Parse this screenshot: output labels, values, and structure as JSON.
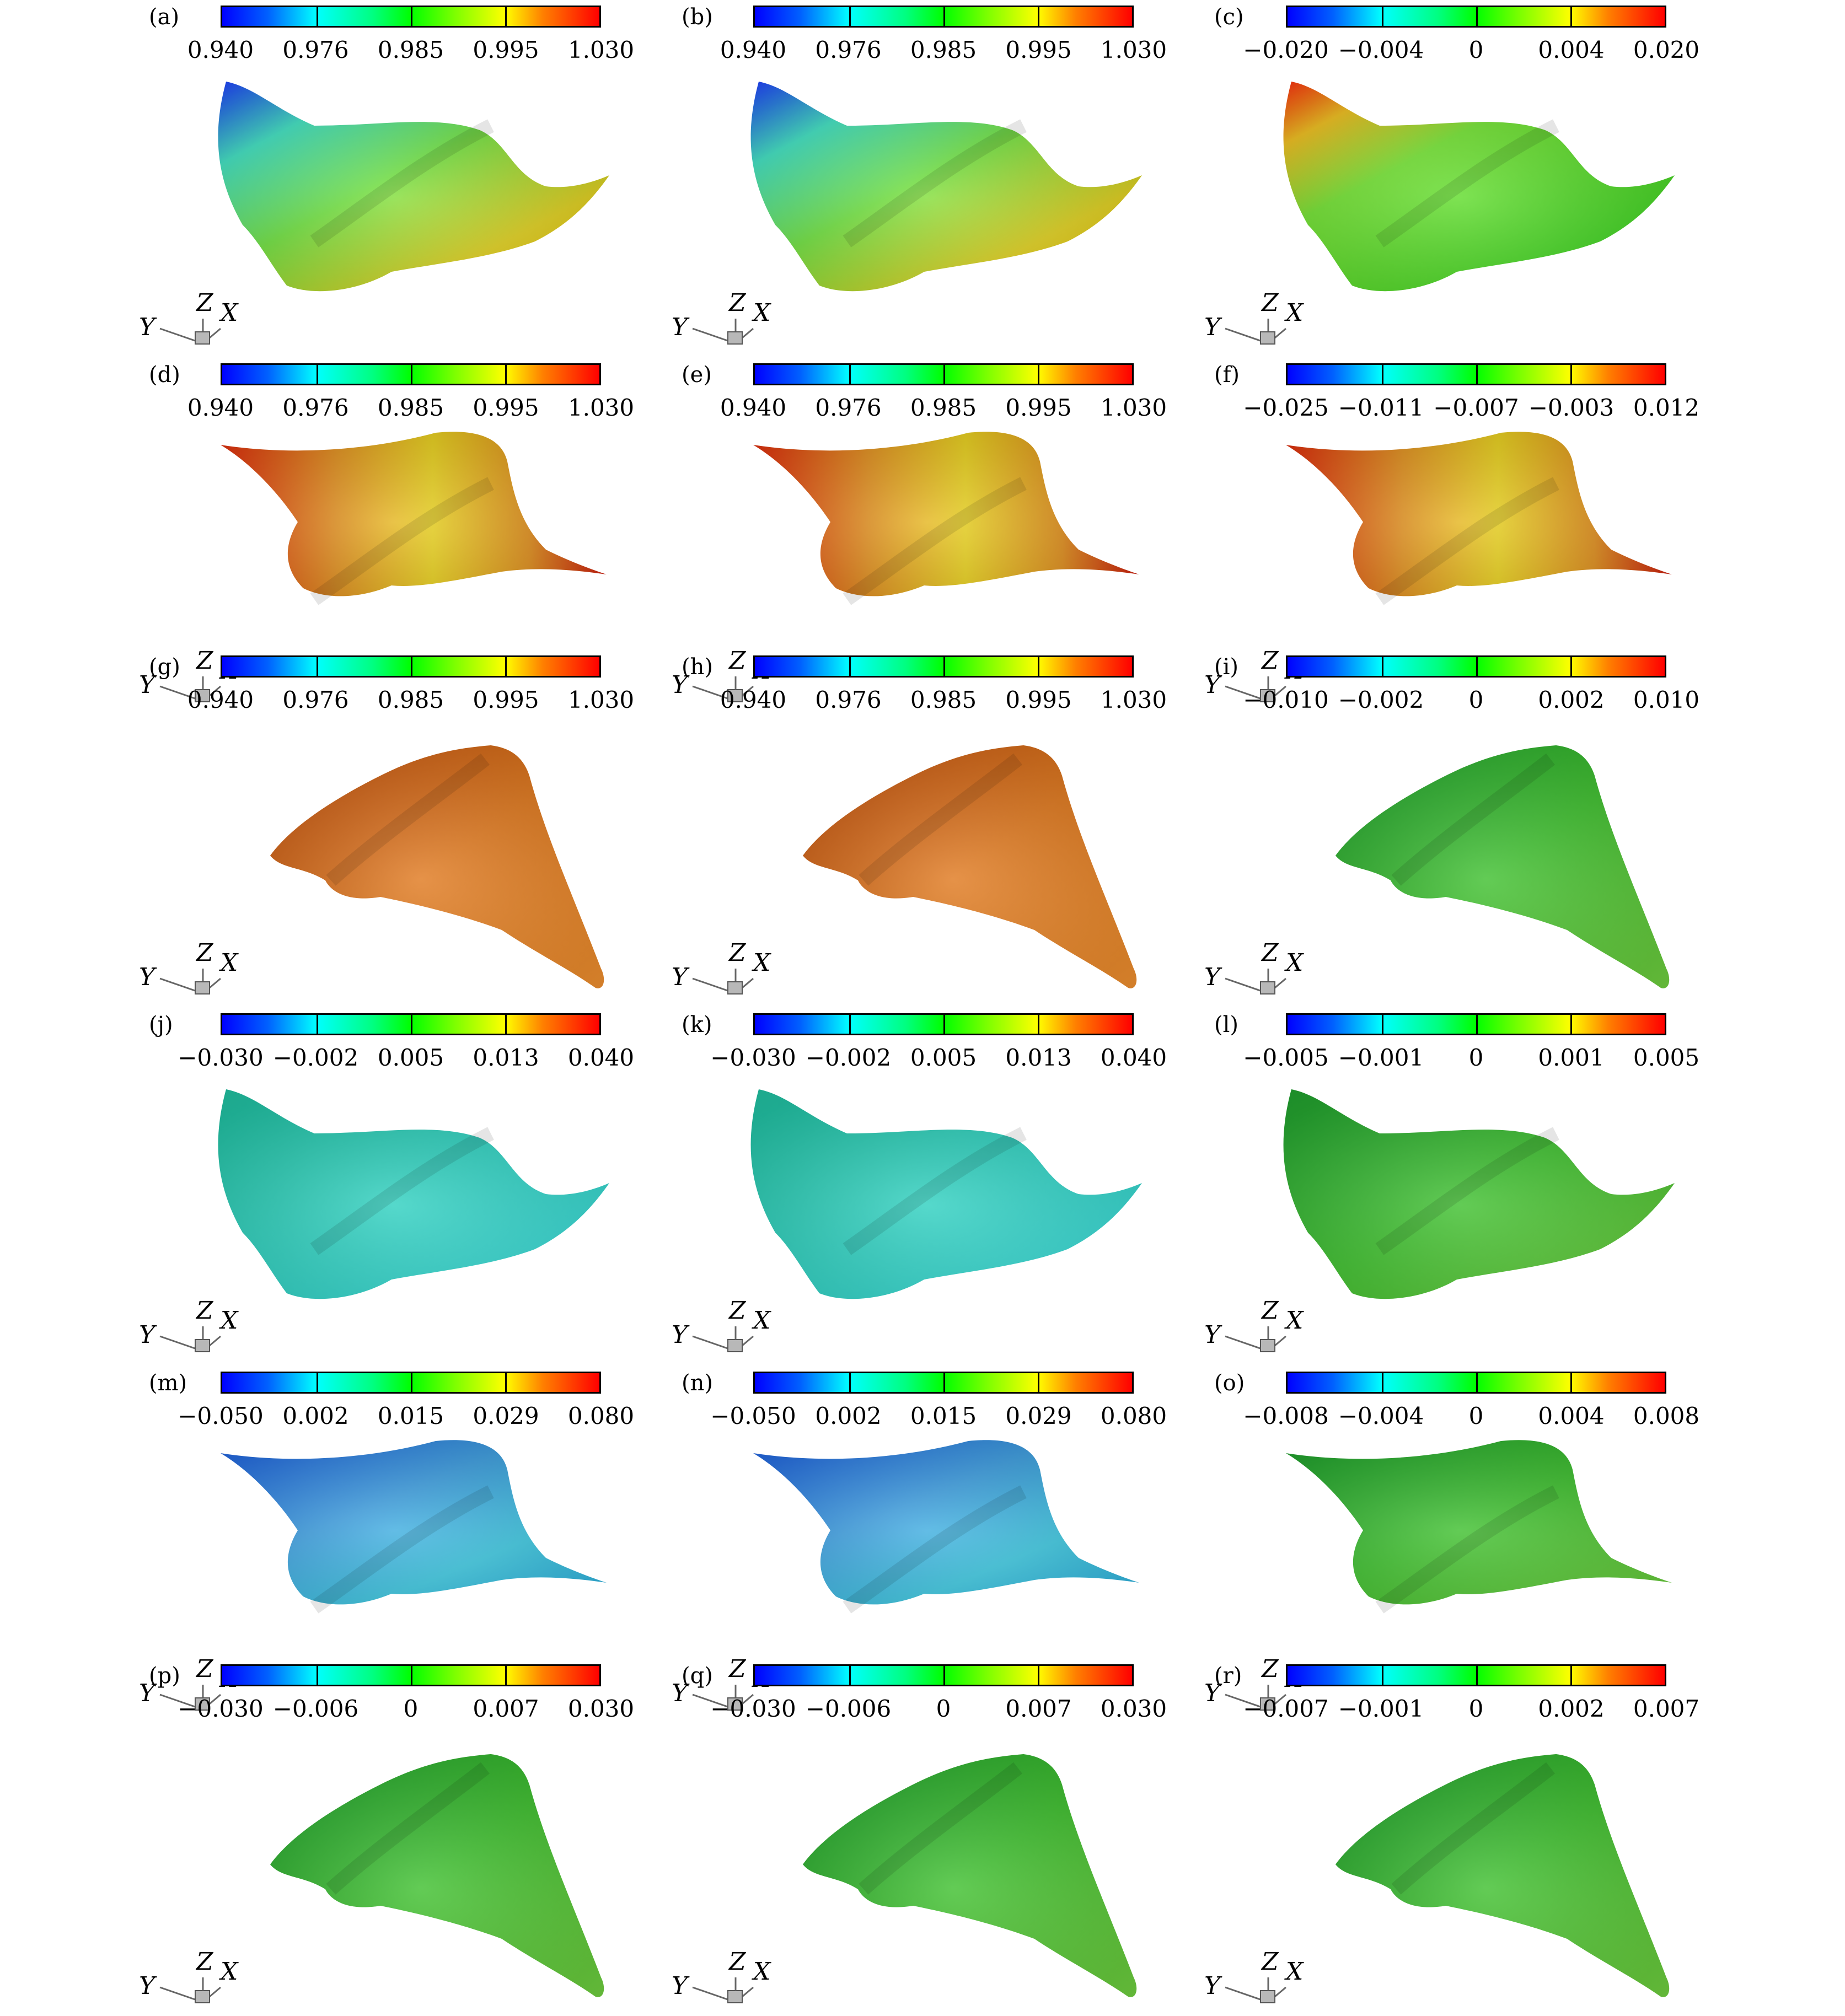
{
  "panels": [
    {
      "label": "(a)",
      "ticks": [
        "0.940",
        "0.976",
        "0.985",
        "0.995",
        "1.030"
      ],
      "shape": "A",
      "scheme": "ca"
    },
    {
      "label": "(b)",
      "ticks": [
        "0.940",
        "0.976",
        "0.985",
        "0.995",
        "1.030"
      ],
      "shape": "A",
      "scheme": "ca"
    },
    {
      "label": "(c)",
      "ticks": [
        "−0.020",
        "−0.004",
        "0",
        "0.004",
        "0.020"
      ],
      "shape": "A",
      "scheme": "diffA"
    },
    {
      "label": "(d)",
      "ticks": [
        "0.940",
        "0.976",
        "0.985",
        "0.995",
        "1.030"
      ],
      "shape": "B",
      "scheme": "cpB"
    },
    {
      "label": "(e)",
      "ticks": [
        "0.940",
        "0.976",
        "0.985",
        "0.995",
        "1.030"
      ],
      "shape": "B",
      "scheme": "cpB"
    },
    {
      "label": "(f)",
      "ticks": [
        "−0.025",
        "−0.011",
        "−0.007",
        "−0.003",
        "0.012"
      ],
      "shape": "B",
      "scheme": "cpB"
    },
    {
      "label": "(g)",
      "ticks": [
        "0.940",
        "0.976",
        "0.985",
        "0.995",
        "1.030"
      ],
      "shape": "C",
      "scheme": "orange"
    },
    {
      "label": "(h)",
      "ticks": [
        "0.940",
        "0.976",
        "0.985",
        "0.995",
        "1.030"
      ],
      "shape": "C",
      "scheme": "orange"
    },
    {
      "label": "(i)",
      "ticks": [
        "−0.010",
        "−0.002",
        "0",
        "0.002",
        "0.010"
      ],
      "shape": "C",
      "scheme": "green"
    },
    {
      "label": "(j)",
      "ticks": [
        "−0.030",
        "−0.002",
        "0.005",
        "0.013",
        "0.040"
      ],
      "shape": "A",
      "scheme": "cyan"
    },
    {
      "label": "(k)",
      "ticks": [
        "−0.030",
        "−0.002",
        "0.005",
        "0.013",
        "0.040"
      ],
      "shape": "A",
      "scheme": "cyan"
    },
    {
      "label": "(l)",
      "ticks": [
        "−0.005",
        "−0.001",
        "0",
        "0.001",
        "0.005"
      ],
      "shape": "A",
      "scheme": "green"
    },
    {
      "label": "(m)",
      "ticks": [
        "−0.050",
        "0.002",
        "0.015",
        "0.029",
        "0.080"
      ],
      "shape": "B",
      "scheme": "blueB"
    },
    {
      "label": "(n)",
      "ticks": [
        "−0.050",
        "0.002",
        "0.015",
        "0.029",
        "0.080"
      ],
      "shape": "B",
      "scheme": "blueB"
    },
    {
      "label": "(o)",
      "ticks": [
        "−0.008",
        "−0.004",
        "0",
        "0.004",
        "0.008"
      ],
      "shape": "B",
      "scheme": "green"
    },
    {
      "label": "(p)",
      "ticks": [
        "−0.030",
        "−0.006",
        "0",
        "0.007",
        "0.030"
      ],
      "shape": "C",
      "scheme": "green"
    },
    {
      "label": "(q)",
      "ticks": [
        "−0.030",
        "−0.006",
        "0",
        "0.007",
        "0.030"
      ],
      "shape": "C",
      "scheme": "green"
    },
    {
      "label": "(r)",
      "ticks": [
        "−0.007",
        "−0.001",
        "0",
        "0.002",
        "0.007"
      ],
      "shape": "C",
      "scheme": "green"
    }
  ],
  "axis_labels": {
    "x": "X",
    "y": "Y",
    "z": "Z"
  },
  "colormap": [
    "#0000ff",
    "#00ffff",
    "#00ff00",
    "#ffff00",
    "#ff0000"
  ]
}
